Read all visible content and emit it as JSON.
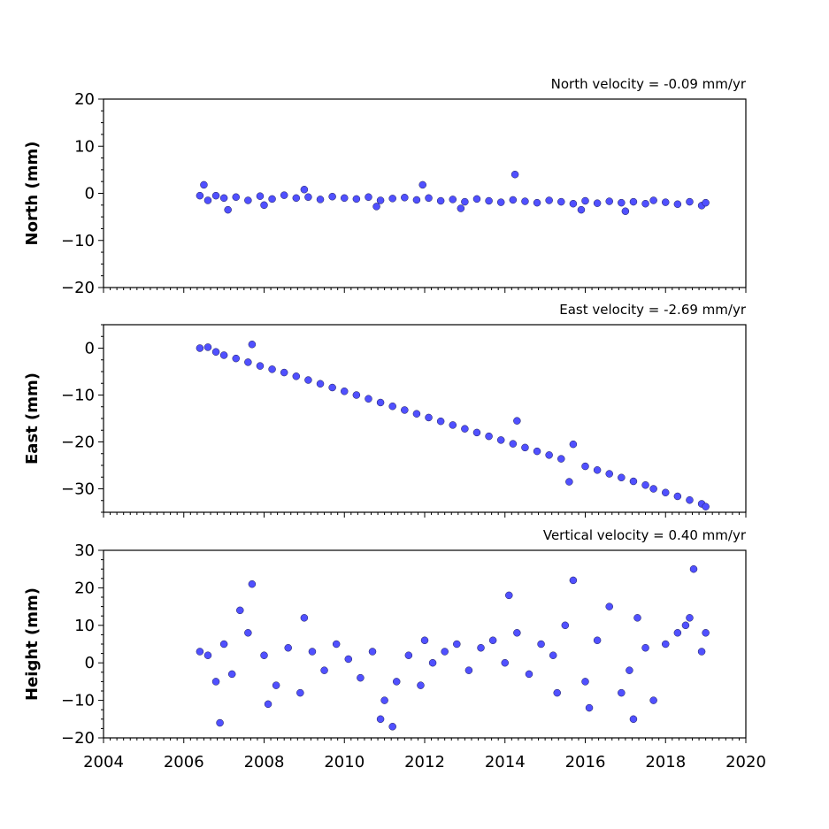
{
  "chart_data": [
    {
      "type": "scatter",
      "name": "north",
      "velocity_label": "North velocity = -0.09 mm/yr",
      "ylabel": "North (mm)",
      "xlim": [
        2004,
        2020
      ],
      "ylim": [
        -20,
        20
      ],
      "yticks": [
        -20,
        -10,
        0,
        10,
        20
      ],
      "ytick_labels": [
        "−20",
        "−10",
        "0",
        "10",
        "20"
      ],
      "xticks": [
        2004,
        2006,
        2008,
        2010,
        2012,
        2014,
        2016,
        2018,
        2020
      ],
      "xtick_labels": [],
      "series": [
        {
          "color": "#5050ff",
          "x": [
            2006.4,
            2006.6,
            2006.8,
            2007.0,
            2007.3,
            2007.6,
            2007.9,
            2008.2,
            2008.5,
            2008.8,
            2009.1,
            2009.4,
            2009.7,
            2010.0,
            2010.3,
            2010.6,
            2010.9,
            2011.2,
            2011.5,
            2011.8,
            2011.95,
            2012.1,
            2012.4,
            2012.7,
            2013.0,
            2013.3,
            2013.6,
            2013.9,
            2014.2,
            2014.25,
            2014.5,
            2014.8,
            2015.1,
            2015.4,
            2015.7,
            2016.0,
            2016.3,
            2016.6,
            2016.9,
            2017.2,
            2017.5,
            2017.7,
            2018.0,
            2018.3,
            2018.6,
            2018.9,
            2019.0,
            2006.5,
            2007.1,
            2008.0,
            2009.0,
            2010.8,
            2012.9,
            2015.9,
            2017.0
          ],
          "y": [
            -0.5,
            -1.5,
            -0.5,
            -1.0,
            -0.8,
            -1.5,
            -0.6,
            -1.2,
            -0.4,
            -1.0,
            -0.8,
            -1.3,
            -0.7,
            -1.0,
            -1.2,
            -0.8,
            -1.5,
            -1.1,
            -0.9,
            -1.4,
            1.8,
            -1.0,
            -1.6,
            -1.3,
            -1.8,
            -1.2,
            -1.6,
            -1.9,
            -1.4,
            4.0,
            -1.7,
            -2.0,
            -1.5,
            -1.8,
            -2.2,
            -1.6,
            -2.1,
            -1.7,
            -2.0,
            -1.8,
            -2.2,
            -1.5,
            -1.9,
            -2.3,
            -1.8,
            -2.6,
            -2.0,
            1.8,
            -3.5,
            -2.5,
            0.8,
            -2.8,
            -3.2,
            -3.5,
            -3.8
          ]
        }
      ]
    },
    {
      "type": "scatter",
      "name": "east",
      "velocity_label": "East velocity = -2.69 mm/yr",
      "ylabel": "East (mm)",
      "xlim": [
        2004,
        2020
      ],
      "ylim": [
        -35,
        5
      ],
      "yticks": [
        -30,
        -20,
        -10,
        0
      ],
      "ytick_labels": [
        "−30",
        "−20",
        "−10",
        "0"
      ],
      "xticks": [
        2004,
        2006,
        2008,
        2010,
        2012,
        2014,
        2016,
        2018,
        2020
      ],
      "xtick_labels": [],
      "series": [
        {
          "color": "#5050ff",
          "x": [
            2006.4,
            2006.6,
            2006.8,
            2007.0,
            2007.3,
            2007.6,
            2007.7,
            2007.9,
            2008.2,
            2008.5,
            2008.8,
            2009.1,
            2009.4,
            2009.7,
            2010.0,
            2010.3,
            2010.6,
            2010.9,
            2011.2,
            2011.5,
            2011.8,
            2012.1,
            2012.4,
            2012.7,
            2013.0,
            2013.3,
            2013.6,
            2013.9,
            2014.2,
            2014.3,
            2014.5,
            2014.8,
            2015.1,
            2015.4,
            2015.6,
            2015.7,
            2016.0,
            2016.3,
            2016.6,
            2016.9,
            2017.2,
            2017.5,
            2017.7,
            2018.0,
            2018.3,
            2018.6,
            2018.9,
            2019.0
          ],
          "y": [
            0.0,
            0.2,
            -0.8,
            -1.5,
            -2.2,
            -3.0,
            0.8,
            -3.8,
            -4.5,
            -5.2,
            -6.0,
            -6.8,
            -7.6,
            -8.4,
            -9.2,
            -10.0,
            -10.8,
            -11.6,
            -12.4,
            -13.2,
            -14.0,
            -14.8,
            -15.6,
            -16.4,
            -17.2,
            -18.0,
            -18.8,
            -19.6,
            -20.4,
            -15.5,
            -21.2,
            -22.0,
            -22.8,
            -23.6,
            -28.5,
            -20.5,
            -25.2,
            -26.0,
            -26.8,
            -27.6,
            -28.4,
            -29.2,
            -30.0,
            -30.8,
            -31.6,
            -32.4,
            -33.2,
            -33.8
          ]
        }
      ]
    },
    {
      "type": "scatter",
      "name": "height",
      "velocity_label": "Vertical velocity = 0.40 mm/yr",
      "ylabel": "Height (mm)",
      "xlim": [
        2004,
        2020
      ],
      "ylim": [
        -20,
        30
      ],
      "yticks": [
        -20,
        -10,
        0,
        10,
        20,
        30
      ],
      "ytick_labels": [
        "−20",
        "−10",
        "0",
        "10",
        "20",
        "30"
      ],
      "xticks": [
        2004,
        2006,
        2008,
        2010,
        2012,
        2014,
        2016,
        2018,
        2020
      ],
      "xtick_labels": [
        "2004",
        "2006",
        "2008",
        "2010",
        "2012",
        "2014",
        "2016",
        "2018",
        "2020"
      ],
      "series": [
        {
          "color": "#5050ff",
          "x": [
            2006.4,
            2006.6,
            2006.8,
            2007.0,
            2007.2,
            2007.6,
            2007.7,
            2008.0,
            2008.3,
            2008.6,
            2008.9,
            2009.2,
            2009.5,
            2009.8,
            2010.1,
            2010.4,
            2010.7,
            2011.0,
            2011.3,
            2011.6,
            2011.9,
            2012.2,
            2012.5,
            2012.8,
            2013.1,
            2013.4,
            2013.7,
            2014.0,
            2014.3,
            2014.6,
            2014.9,
            2015.2,
            2015.5,
            2015.7,
            2016.0,
            2016.3,
            2016.6,
            2016.9,
            2017.1,
            2017.3,
            2017.5,
            2017.7,
            2018.0,
            2018.3,
            2018.6,
            2018.7,
            2018.9,
            2019.0,
            2006.9,
            2007.4,
            2008.1,
            2009.0,
            2010.9,
            2011.2,
            2012.0,
            2014.1,
            2015.3,
            2016.1,
            2017.2,
            2018.5
          ],
          "y": [
            3,
            2,
            -5,
            5,
            -3,
            8,
            21,
            2,
            -6,
            4,
            -8,
            3,
            -2,
            5,
            1,
            -4,
            3,
            -10,
            -5,
            2,
            -6,
            0,
            3,
            5,
            -2,
            4,
            6,
            0,
            8,
            -3,
            5,
            2,
            10,
            22,
            -5,
            6,
            15,
            -8,
            -2,
            12,
            4,
            -10,
            5,
            8,
            12,
            25,
            3,
            8,
            -16,
            14,
            -11,
            12,
            -15,
            -17,
            6,
            18,
            -8,
            -12,
            -15,
            10
          ]
        }
      ]
    }
  ]
}
